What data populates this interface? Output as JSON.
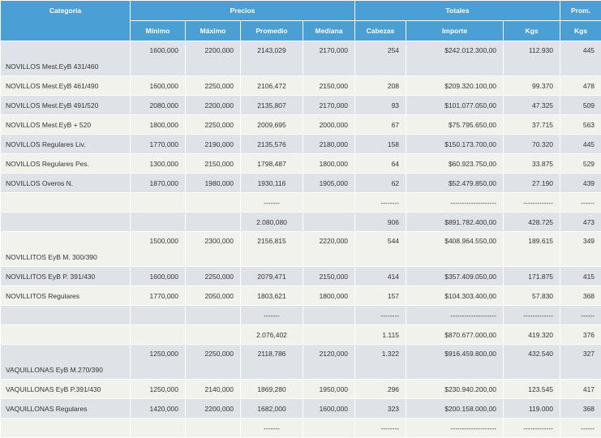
{
  "headers": {
    "categoria": "Categoria",
    "precios": "Precios",
    "totales": "Totales",
    "prom": "Prom.",
    "minimo": "Mínimo",
    "maximo": "Máximo",
    "promedio": "Promedio",
    "mediana": "Mediana",
    "cabezas": "Cabezas",
    "importe": "Importe",
    "kgs": "Kgs",
    "prom_kgs": "Kgs"
  },
  "rows": [
    {
      "tall": true,
      "cat": "NOVILLOS Mest.EyB 431/460",
      "min": "1600,000",
      "max": "2200,000",
      "prom": "2143,029",
      "med": "2170,000",
      "cab": "254",
      "imp": "$242.012.300,00",
      "kgs": "112.930",
      "pk": "445"
    },
    {
      "tall": false,
      "cat": "NOVILLOS Mest.EyB 461/490",
      "min": "1600,000",
      "max": "2250,000",
      "prom": "2106,472",
      "med": "2150,000",
      "cab": "208",
      "imp": "$209.320.100,00",
      "kgs": "99.370",
      "pk": "478"
    },
    {
      "tall": false,
      "cat": "NOVILLOS Mest.EyB 491/520",
      "min": "2080,000",
      "max": "2200,000",
      "prom": "2135,807",
      "med": "2170,000",
      "cab": "93",
      "imp": "$101.077.050,00",
      "kgs": "47.325",
      "pk": "509"
    },
    {
      "tall": false,
      "cat": "NOVILLOS Mest.EyB + 520",
      "min": "1800,000",
      "max": "2250,000",
      "prom": "2009,695",
      "med": "2000,000",
      "cab": "67",
      "imp": "$75.795.650,00",
      "kgs": "37.715",
      "pk": "563"
    },
    {
      "tall": false,
      "cat": "NOVILLOS Regulares Liv.",
      "min": "1770,000",
      "max": "2190,000",
      "prom": "2135,576",
      "med": "2180,000",
      "cab": "158",
      "imp": "$150.173.700,00",
      "kgs": "70.320",
      "pk": "445"
    },
    {
      "tall": false,
      "cat": "NOVILLOS Regulares Pes.",
      "min": "1300,000",
      "max": "2150,000",
      "prom": "1798,487",
      "med": "1800,000",
      "cab": "64",
      "imp": "$60.923.750,00",
      "kgs": "33.875",
      "pk": "529"
    },
    {
      "tall": false,
      "cat": "NOVILLOS Overos N.",
      "min": "1870,000",
      "max": "1980,000",
      "prom": "1930,116",
      "med": "1905,000",
      "cab": "62",
      "imp": "$52.479.850,00",
      "kgs": "27.190",
      "pk": "439"
    },
    {
      "tall": false,
      "cat": "",
      "min": "",
      "max": "",
      "prom": "-------",
      "med": "",
      "cab": "--------",
      "imp": "--------------------",
      "kgs": "-------------",
      "pk": "------"
    },
    {
      "tall": false,
      "cat": "",
      "min": "",
      "max": "",
      "prom": "2.080,080",
      "med": "",
      "cab": "906",
      "imp": "$891.782.400,00",
      "kgs": "428.725",
      "pk": "473"
    },
    {
      "tall": true,
      "cat": "NOVILLITOS EyB M. 300/390",
      "min": "1500,000",
      "max": "2300,000",
      "prom": "2156,815",
      "med": "2220,000",
      "cab": "544",
      "imp": "$408.964.550,00",
      "kgs": "189.615",
      "pk": "349"
    },
    {
      "tall": false,
      "cat": "NOVILLITOS EyB P. 391/430",
      "min": "1600,000",
      "max": "2250,000",
      "prom": "2079,471",
      "med": "2150,000",
      "cab": "414",
      "imp": "$357.409.050,00",
      "kgs": "171.875",
      "pk": "415"
    },
    {
      "tall": false,
      "cat": "NOVILLITOS Regulares",
      "min": "1770,000",
      "max": "2050,000",
      "prom": "1803,621",
      "med": "1800,000",
      "cab": "157",
      "imp": "$104.303.400,00",
      "kgs": "57.830",
      "pk": "368"
    },
    {
      "tall": false,
      "cat": "",
      "min": "",
      "max": "",
      "prom": "-------",
      "med": "",
      "cab": "--------",
      "imp": "--------------------",
      "kgs": "-------------",
      "pk": "------"
    },
    {
      "tall": false,
      "cat": "",
      "min": "",
      "max": "",
      "prom": "2.076,402",
      "med": "",
      "cab": "1.115",
      "imp": "$870.677.000,00",
      "kgs": "419.320",
      "pk": "376"
    },
    {
      "tall": true,
      "cat": "VAQUILLONAS EyB M.270/390",
      "min": "1250,000",
      "max": "2250,000",
      "prom": "2118,786",
      "med": "2120,000",
      "cab": "1.322",
      "imp": "$916.459.800,00",
      "kgs": "432.540",
      "pk": "327"
    },
    {
      "tall": false,
      "cat": "VAQUILLONAS EyB P.391/430",
      "min": "1250,000",
      "max": "2140,000",
      "prom": "1869,280",
      "med": "1950,000",
      "cab": "296",
      "imp": "$230.940.200,00",
      "kgs": "123.545",
      "pk": "417"
    },
    {
      "tall": false,
      "cat": "VAQUILLONAS Regulares",
      "min": "1420,000",
      "max": "2200,000",
      "prom": "1682,000",
      "med": "1600,000",
      "cab": "323",
      "imp": "$200.158.000,00",
      "kgs": "119.000",
      "pk": "368"
    },
    {
      "tall": false,
      "cat": "",
      "min": "",
      "max": "",
      "prom": "-------",
      "med": "",
      "cab": "--------",
      "imp": "--------------------",
      "kgs": "-------------",
      "pk": "------"
    }
  ]
}
